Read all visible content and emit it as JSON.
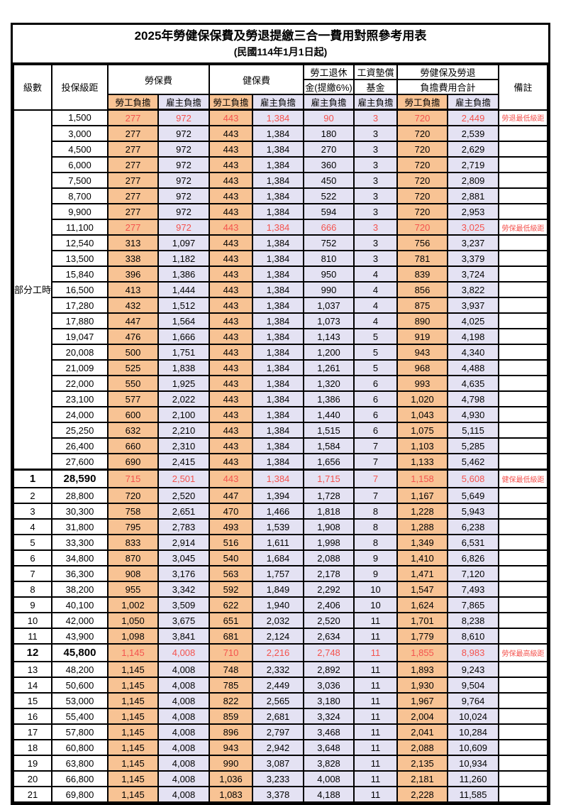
{
  "title": "2025年勞健保保費及勞退提繳三合一費用對照參考用表",
  "subtitle": "(民國114年1月1日起)",
  "header": {
    "level": "級數",
    "bracket": "投保級距",
    "labor": "勞保費",
    "health": "健保費",
    "pension_line1": "勞工退休",
    "pension_line2": "金(提繳6%)",
    "fund_line1": "工資墊償",
    "fund_line2": "基金",
    "total_line1": "勞健保及勞退",
    "total_line2": "負擔費用合計",
    "note": "備註",
    "employee": "勞工負擔",
    "employer": "雇主負擔"
  },
  "part_time_label": "部分工時",
  "colors": {
    "employee_bg": "#F8C394",
    "employer_bg": "#E4E2F3",
    "highlight_text": "#F4534E",
    "border": "#000000"
  },
  "rows": [
    {
      "lv": "",
      "sal": "1,500",
      "v": [
        "277",
        "972",
        "443",
        "1,384",
        "90",
        "3",
        "720",
        "2,449"
      ],
      "note": "勞退最低級距",
      "red": true,
      "bold": false
    },
    {
      "lv": "",
      "sal": "3,000",
      "v": [
        "277",
        "972",
        "443",
        "1,384",
        "180",
        "3",
        "720",
        "2,539"
      ],
      "note": "",
      "red": false,
      "bold": false
    },
    {
      "lv": "",
      "sal": "4,500",
      "v": [
        "277",
        "972",
        "443",
        "1,384",
        "270",
        "3",
        "720",
        "2,629"
      ],
      "note": "",
      "red": false,
      "bold": false
    },
    {
      "lv": "",
      "sal": "6,000",
      "v": [
        "277",
        "972",
        "443",
        "1,384",
        "360",
        "3",
        "720",
        "2,719"
      ],
      "note": "",
      "red": false,
      "bold": false
    },
    {
      "lv": "",
      "sal": "7,500",
      "v": [
        "277",
        "972",
        "443",
        "1,384",
        "450",
        "3",
        "720",
        "2,809"
      ],
      "note": "",
      "red": false,
      "bold": false
    },
    {
      "lv": "",
      "sal": "8,700",
      "v": [
        "277",
        "972",
        "443",
        "1,384",
        "522",
        "3",
        "720",
        "2,881"
      ],
      "note": "",
      "red": false,
      "bold": false
    },
    {
      "lv": "",
      "sal": "9,900",
      "v": [
        "277",
        "972",
        "443",
        "1,384",
        "594",
        "3",
        "720",
        "2,953"
      ],
      "note": "",
      "red": false,
      "bold": false
    },
    {
      "lv": "",
      "sal": "11,100",
      "v": [
        "277",
        "972",
        "443",
        "1,384",
        "666",
        "3",
        "720",
        "3,025"
      ],
      "note": "勞保最低級距",
      "red": true,
      "bold": false
    },
    {
      "lv": "",
      "sal": "12,540",
      "v": [
        "313",
        "1,097",
        "443",
        "1,384",
        "752",
        "3",
        "756",
        "3,237"
      ],
      "note": "",
      "red": false,
      "bold": false
    },
    {
      "lv": "",
      "sal": "13,500",
      "v": [
        "338",
        "1,182",
        "443",
        "1,384",
        "810",
        "3",
        "781",
        "3,379"
      ],
      "note": "",
      "red": false,
      "bold": false
    },
    {
      "lv": "",
      "sal": "15,840",
      "v": [
        "396",
        "1,386",
        "443",
        "1,384",
        "950",
        "4",
        "839",
        "3,724"
      ],
      "note": "",
      "red": false,
      "bold": false
    },
    {
      "lv": "",
      "sal": "16,500",
      "v": [
        "413",
        "1,444",
        "443",
        "1,384",
        "990",
        "4",
        "856",
        "3,822"
      ],
      "note": "",
      "red": false,
      "bold": false
    },
    {
      "lv": "",
      "sal": "17,280",
      "v": [
        "432",
        "1,512",
        "443",
        "1,384",
        "1,037",
        "4",
        "875",
        "3,937"
      ],
      "note": "",
      "red": false,
      "bold": false
    },
    {
      "lv": "",
      "sal": "17,880",
      "v": [
        "447",
        "1,564",
        "443",
        "1,384",
        "1,073",
        "4",
        "890",
        "4,025"
      ],
      "note": "",
      "red": false,
      "bold": false
    },
    {
      "lv": "",
      "sal": "19,047",
      "v": [
        "476",
        "1,666",
        "443",
        "1,384",
        "1,143",
        "5",
        "919",
        "4,198"
      ],
      "note": "",
      "red": false,
      "bold": false
    },
    {
      "lv": "",
      "sal": "20,008",
      "v": [
        "500",
        "1,751",
        "443",
        "1,384",
        "1,200",
        "5",
        "943",
        "4,340"
      ],
      "note": "",
      "red": false,
      "bold": false
    },
    {
      "lv": "",
      "sal": "21,009",
      "v": [
        "525",
        "1,838",
        "443",
        "1,384",
        "1,261",
        "5",
        "968",
        "4,488"
      ],
      "note": "",
      "red": false,
      "bold": false
    },
    {
      "lv": "",
      "sal": "22,000",
      "v": [
        "550",
        "1,925",
        "443",
        "1,384",
        "1,320",
        "6",
        "993",
        "4,635"
      ],
      "note": "",
      "red": false,
      "bold": false
    },
    {
      "lv": "",
      "sal": "23,100",
      "v": [
        "577",
        "2,022",
        "443",
        "1,384",
        "1,386",
        "6",
        "1,020",
        "4,798"
      ],
      "note": "",
      "red": false,
      "bold": false
    },
    {
      "lv": "",
      "sal": "24,000",
      "v": [
        "600",
        "2,100",
        "443",
        "1,384",
        "1,440",
        "6",
        "1,043",
        "4,930"
      ],
      "note": "",
      "red": false,
      "bold": false
    },
    {
      "lv": "",
      "sal": "25,250",
      "v": [
        "632",
        "2,210",
        "443",
        "1,384",
        "1,515",
        "6",
        "1,075",
        "5,115"
      ],
      "note": "",
      "red": false,
      "bold": false
    },
    {
      "lv": "",
      "sal": "26,400",
      "v": [
        "660",
        "2,310",
        "443",
        "1,384",
        "1,584",
        "7",
        "1,103",
        "5,285"
      ],
      "note": "",
      "red": false,
      "bold": false
    },
    {
      "lv": "",
      "sal": "27,600",
      "v": [
        "690",
        "2,415",
        "443",
        "1,384",
        "1,656",
        "7",
        "1,133",
        "5,462"
      ],
      "note": "",
      "red": false,
      "bold": false
    },
    {
      "lv": "1",
      "sal": "28,590",
      "v": [
        "715",
        "2,501",
        "443",
        "1,384",
        "1,715",
        "7",
        "1,158",
        "5,608"
      ],
      "note": "健保最低級距",
      "red": true,
      "bold": true,
      "sep": true
    },
    {
      "lv": "2",
      "sal": "28,800",
      "v": [
        "720",
        "2,520",
        "447",
        "1,394",
        "1,728",
        "7",
        "1,167",
        "5,649"
      ],
      "note": "",
      "red": false,
      "bold": false
    },
    {
      "lv": "3",
      "sal": "30,300",
      "v": [
        "758",
        "2,651",
        "470",
        "1,466",
        "1,818",
        "8",
        "1,228",
        "5,943"
      ],
      "note": "",
      "red": false,
      "bold": false
    },
    {
      "lv": "4",
      "sal": "31,800",
      "v": [
        "795",
        "2,783",
        "493",
        "1,539",
        "1,908",
        "8",
        "1,288",
        "6,238"
      ],
      "note": "",
      "red": false,
      "bold": false
    },
    {
      "lv": "5",
      "sal": "33,300",
      "v": [
        "833",
        "2,914",
        "516",
        "1,611",
        "1,998",
        "8",
        "1,349",
        "6,531"
      ],
      "note": "",
      "red": false,
      "bold": false
    },
    {
      "lv": "6",
      "sal": "34,800",
      "v": [
        "870",
        "3,045",
        "540",
        "1,684",
        "2,088",
        "9",
        "1,410",
        "6,826"
      ],
      "note": "",
      "red": false,
      "bold": false
    },
    {
      "lv": "7",
      "sal": "36,300",
      "v": [
        "908",
        "3,176",
        "563",
        "1,757",
        "2,178",
        "9",
        "1,471",
        "7,120"
      ],
      "note": "",
      "red": false,
      "bold": false
    },
    {
      "lv": "8",
      "sal": "38,200",
      "v": [
        "955",
        "3,342",
        "592",
        "1,849",
        "2,292",
        "10",
        "1,547",
        "7,493"
      ],
      "note": "",
      "red": false,
      "bold": false
    },
    {
      "lv": "9",
      "sal": "40,100",
      "v": [
        "1,002",
        "3,509",
        "622",
        "1,940",
        "2,406",
        "10",
        "1,624",
        "7,865"
      ],
      "note": "",
      "red": false,
      "bold": false
    },
    {
      "lv": "10",
      "sal": "42,000",
      "v": [
        "1,050",
        "3,675",
        "651",
        "2,032",
        "2,520",
        "11",
        "1,701",
        "8,238"
      ],
      "note": "",
      "red": false,
      "bold": false
    },
    {
      "lv": "11",
      "sal": "43,900",
      "v": [
        "1,098",
        "3,841",
        "681",
        "2,124",
        "2,634",
        "11",
        "1,779",
        "8,610"
      ],
      "note": "",
      "red": false,
      "bold": false
    },
    {
      "lv": "12",
      "sal": "45,800",
      "v": [
        "1,145",
        "4,008",
        "710",
        "2,216",
        "2,748",
        "11",
        "1,855",
        "8,983"
      ],
      "note": "勞保最高級距",
      "red": true,
      "bold": true
    },
    {
      "lv": "13",
      "sal": "48,200",
      "v": [
        "1,145",
        "4,008",
        "748",
        "2,332",
        "2,892",
        "11",
        "1,893",
        "9,243"
      ],
      "note": "",
      "red": false,
      "bold": false
    },
    {
      "lv": "14",
      "sal": "50,600",
      "v": [
        "1,145",
        "4,008",
        "785",
        "2,449",
        "3,036",
        "11",
        "1,930",
        "9,504"
      ],
      "note": "",
      "red": false,
      "bold": false
    },
    {
      "lv": "15",
      "sal": "53,000",
      "v": [
        "1,145",
        "4,008",
        "822",
        "2,565",
        "3,180",
        "11",
        "1,967",
        "9,764"
      ],
      "note": "",
      "red": false,
      "bold": false
    },
    {
      "lv": "16",
      "sal": "55,400",
      "v": [
        "1,145",
        "4,008",
        "859",
        "2,681",
        "3,324",
        "11",
        "2,004",
        "10,024"
      ],
      "note": "",
      "red": false,
      "bold": false
    },
    {
      "lv": "17",
      "sal": "57,800",
      "v": [
        "1,145",
        "4,008",
        "896",
        "2,797",
        "3,468",
        "11",
        "2,041",
        "10,284"
      ],
      "note": "",
      "red": false,
      "bold": false
    },
    {
      "lv": "18",
      "sal": "60,800",
      "v": [
        "1,145",
        "4,008",
        "943",
        "2,942",
        "3,648",
        "11",
        "2,088",
        "10,609"
      ],
      "note": "",
      "red": false,
      "bold": false
    },
    {
      "lv": "19",
      "sal": "63,800",
      "v": [
        "1,145",
        "4,008",
        "990",
        "3,087",
        "3,828",
        "11",
        "2,135",
        "10,934"
      ],
      "note": "",
      "red": false,
      "bold": false
    },
    {
      "lv": "20",
      "sal": "66,800",
      "v": [
        "1,145",
        "4,008",
        "1,036",
        "3,233",
        "4,008",
        "11",
        "2,181",
        "11,260"
      ],
      "note": "",
      "red": false,
      "bold": false
    },
    {
      "lv": "21",
      "sal": "69,800",
      "v": [
        "1,145",
        "4,008",
        "1,083",
        "3,378",
        "4,188",
        "11",
        "2,228",
        "11,585"
      ],
      "note": "",
      "red": false,
      "bold": false
    }
  ]
}
